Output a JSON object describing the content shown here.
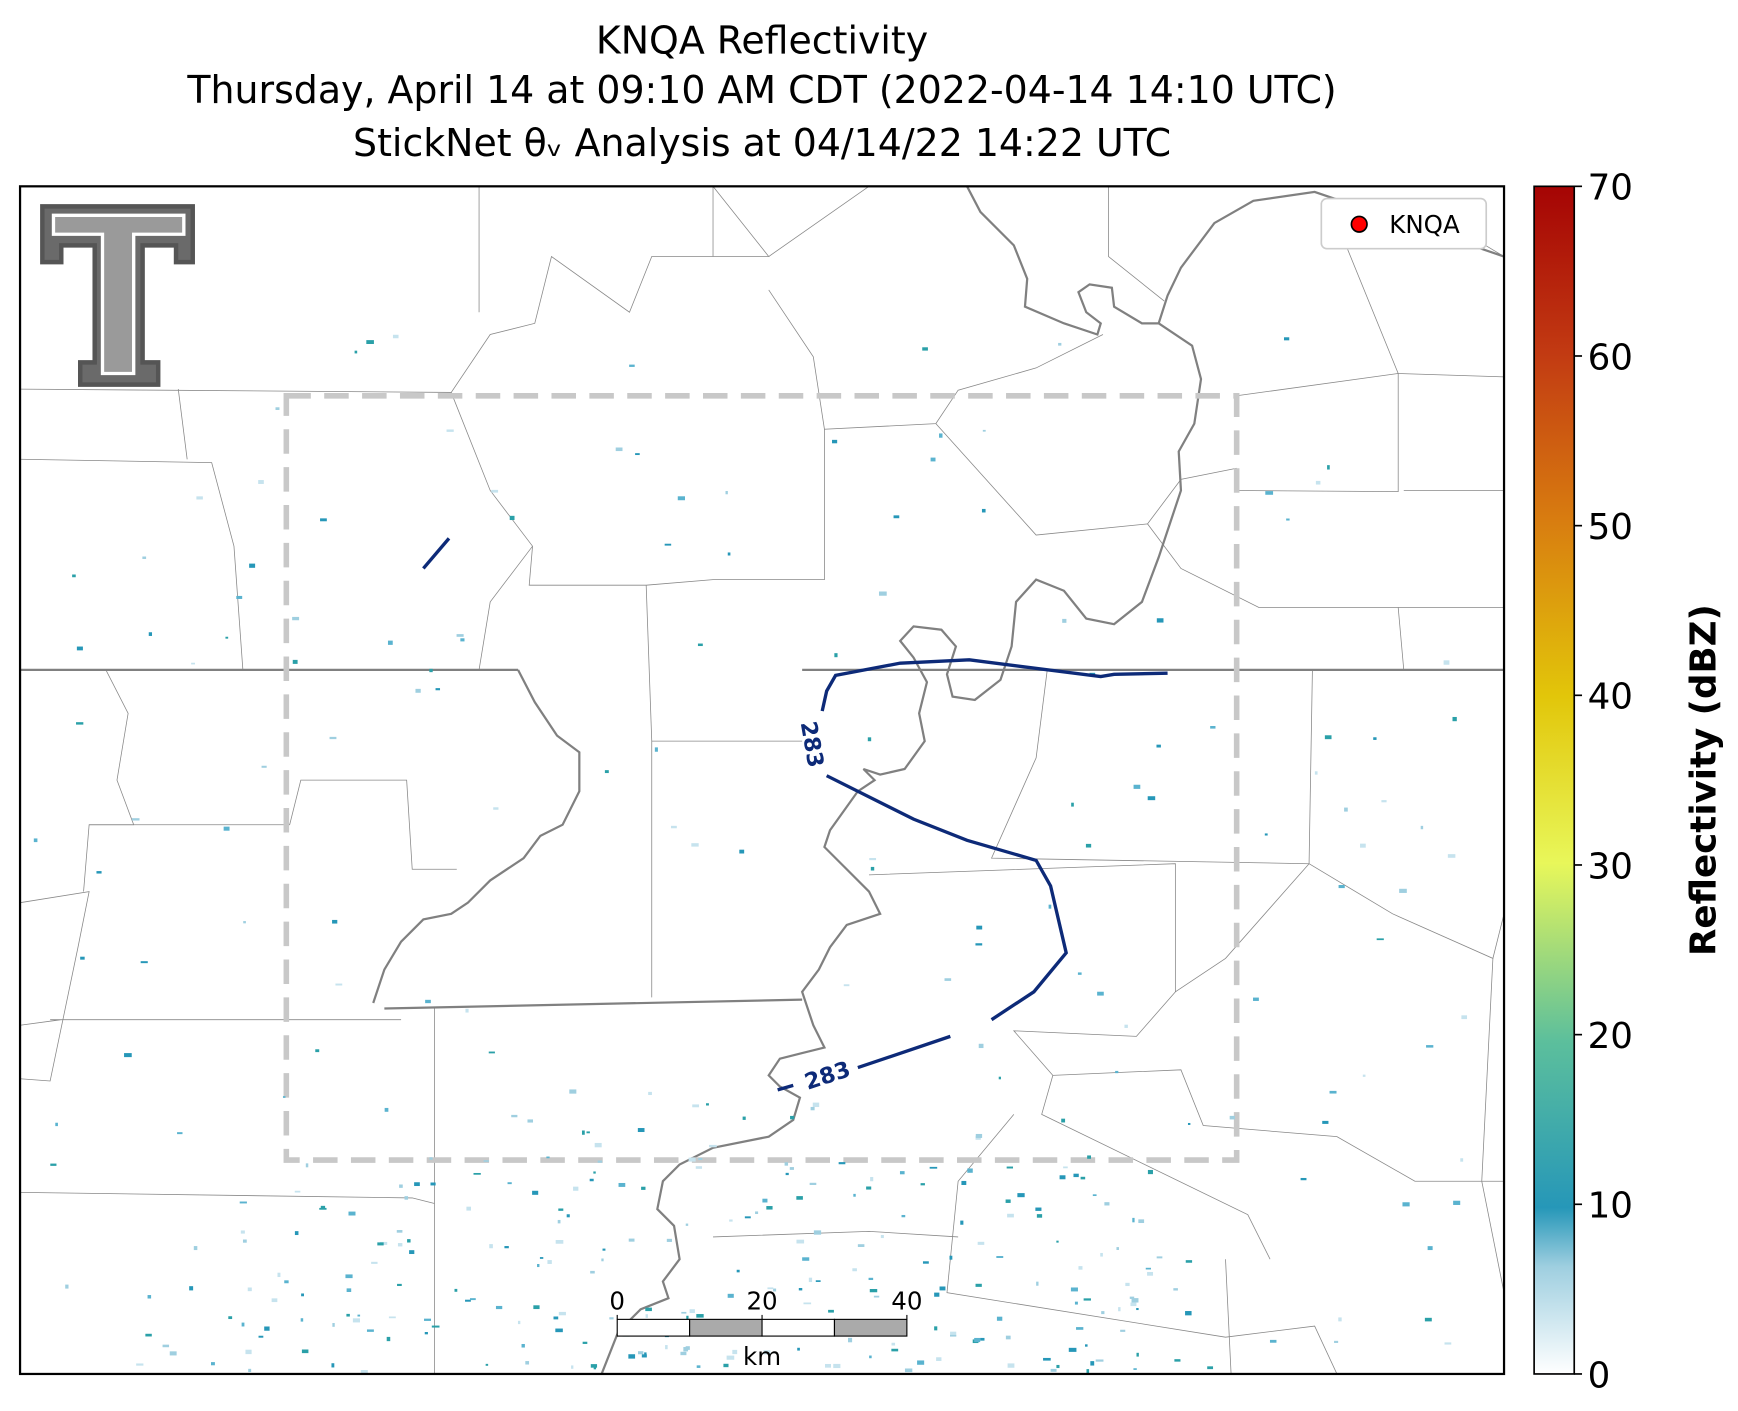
{
  "title": [
    "KNQA Reflectivity",
    "Thursday, April 14 at 09:10 AM CDT (2022-04-14 14:10 UTC)",
    "StickNet θᵥ Analysis at 04/14/22 14:22 UTC"
  ],
  "legend": {
    "label": "KNQA"
  },
  "colorbar": {
    "label": "Reflectivity (dBZ)",
    "lim": [
      0,
      70
    ],
    "ticks": [
      0,
      10,
      20,
      30,
      40,
      50,
      60,
      70
    ]
  },
  "contours": [
    {
      "label": "283"
    },
    {
      "label": "283"
    }
  ],
  "scale_bar": {
    "ticks": [
      0,
      20,
      40
    ],
    "unit": "km"
  }
}
